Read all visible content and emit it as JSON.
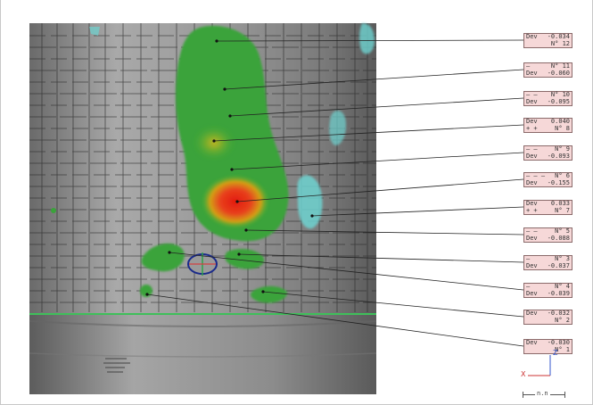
{
  "labels": [
    {
      "id": "n12",
      "l1": "Dev",
      "r1": "-0.034",
      "l2": "",
      "r2": "N° 12"
    },
    {
      "id": "n11",
      "l1": "–",
      "r1": "N° 11",
      "l2": "Dev",
      "r2": "-0.060"
    },
    {
      "id": "n10",
      "l1": "– –",
      "r1": "N° 10",
      "l2": "Dev",
      "r2": "-0.095"
    },
    {
      "id": "n8",
      "l1": "Dev",
      "r1": "0.040",
      "l2": "+ +",
      "r2": "N° 8"
    },
    {
      "id": "n9",
      "l1": "– –",
      "r1": "N° 9",
      "l2": "Dev",
      "r2": "-0.093"
    },
    {
      "id": "n6",
      "l1": "– – –",
      "r1": "N° 6",
      "l2": "Dev",
      "r2": "-0.155"
    },
    {
      "id": "n7",
      "l1": "Dev",
      "r1": "0.033",
      "l2": "+ +",
      "r2": "N° 7"
    },
    {
      "id": "n5",
      "l1": "– –",
      "r1": "N° 5",
      "l2": "Dev",
      "r2": "-0.088"
    },
    {
      "id": "n3",
      "l1": "–",
      "r1": "N° 3",
      "l2": "Dev",
      "r2": "-0.037"
    },
    {
      "id": "n4",
      "l1": "–",
      "r1": "N° 4",
      "l2": "Dev",
      "r2": "-0.039"
    },
    {
      "id": "n2",
      "l1": "Dev",
      "r1": "-0.032",
      "l2": "",
      "r2": "N° 2"
    },
    {
      "id": "n1",
      "l1": "Dev",
      "r1": "-0.030",
      "l2": "",
      "r2": "N° 1"
    }
  ],
  "axes": {
    "x": "X",
    "z": "Z"
  },
  "scale_bar_text": "n.n",
  "colors": {
    "cylinder": "#8e8e8e",
    "green": "#3aa33a",
    "red": "#e8301a",
    "cyan": "#6ed3d0",
    "label_bg": "#f6d8d8"
  }
}
